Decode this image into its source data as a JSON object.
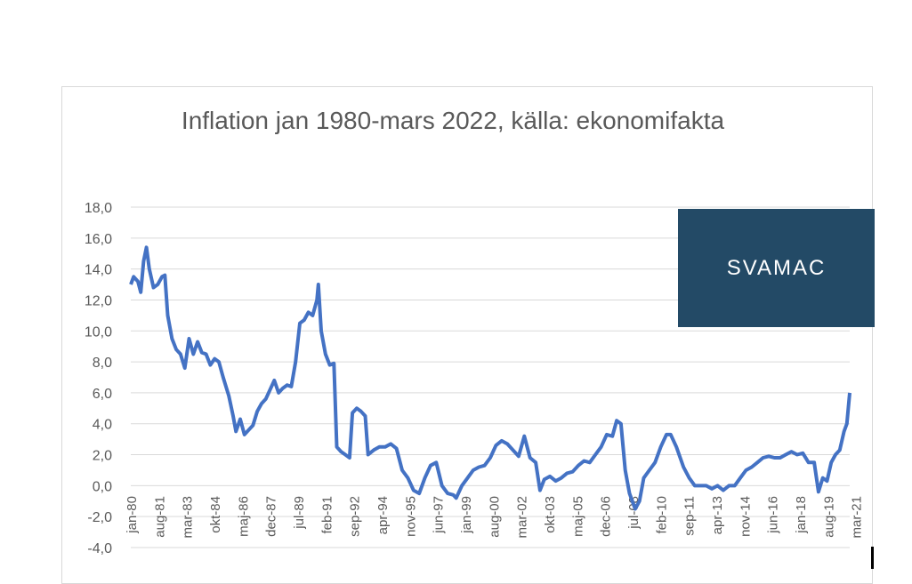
{
  "logo": {
    "text": "SVAMAC",
    "background": "#234a66",
    "accent": "#d38b5d"
  },
  "chart_data": {
    "type": "line",
    "title": "Inflation jan 1980-mars 2022, källa: ekonomifakta",
    "xlabel": "",
    "ylabel": "",
    "ylim": [
      -4,
      18
    ],
    "yticks": [
      "-4,0",
      "-2,0",
      "0,0",
      "2,0",
      "4,0",
      "6,0",
      "8,0",
      "10,0",
      "12,0",
      "14,0",
      "16,0",
      "18,0"
    ],
    "xticks": [
      "jan-80",
      "aug-81",
      "mar-83",
      "okt-84",
      "maj-86",
      "dec-87",
      "jul-89",
      "feb-91",
      "sep-92",
      "apr-94",
      "nov-95",
      "jun-97",
      "jan-99",
      "aug-00",
      "mar-02",
      "okt-03",
      "maj-05",
      "dec-06",
      "jul-08",
      "feb-10",
      "sep-11",
      "apr-13",
      "nov-14",
      "jun-16",
      "jan-18",
      "aug-19",
      "mar-21"
    ],
    "grid": true,
    "legend": "none",
    "line_color": "#4472c4",
    "x_range": [
      "1980-01",
      "2022-03"
    ],
    "series": [
      {
        "points": [
          [
            "1980-01",
            13.0
          ],
          [
            "1980-03",
            13.5
          ],
          [
            "1980-06",
            13.2
          ],
          [
            "1980-08",
            12.5
          ],
          [
            "1980-10",
            14.5
          ],
          [
            "1980-12",
            15.4
          ],
          [
            "1981-02",
            14.0
          ],
          [
            "1981-05",
            12.8
          ],
          [
            "1981-08",
            13.0
          ],
          [
            "1981-11",
            13.5
          ],
          [
            "1982-01",
            13.6
          ],
          [
            "1982-03",
            11.0
          ],
          [
            "1982-06",
            9.5
          ],
          [
            "1982-09",
            8.8
          ],
          [
            "1982-12",
            8.5
          ],
          [
            "1983-03",
            7.6
          ],
          [
            "1983-06",
            9.5
          ],
          [
            "1983-09",
            8.5
          ],
          [
            "1983-12",
            9.3
          ],
          [
            "1984-03",
            8.6
          ],
          [
            "1984-06",
            8.5
          ],
          [
            "1984-09",
            7.8
          ],
          [
            "1984-12",
            8.2
          ],
          [
            "1985-03",
            8.0
          ],
          [
            "1985-06",
            7.0
          ],
          [
            "1985-10",
            5.8
          ],
          [
            "1986-01",
            4.5
          ],
          [
            "1986-03",
            3.5
          ],
          [
            "1986-06",
            4.3
          ],
          [
            "1986-09",
            3.3
          ],
          [
            "1986-12",
            3.6
          ],
          [
            "1987-03",
            3.9
          ],
          [
            "1987-06",
            4.8
          ],
          [
            "1987-09",
            5.3
          ],
          [
            "1987-12",
            5.6
          ],
          [
            "1988-03",
            6.2
          ],
          [
            "1988-06",
            6.8
          ],
          [
            "1988-09",
            6.0
          ],
          [
            "1988-12",
            6.3
          ],
          [
            "1989-03",
            6.5
          ],
          [
            "1989-06",
            6.4
          ],
          [
            "1989-09",
            8.0
          ],
          [
            "1989-12",
            10.5
          ],
          [
            "1990-03",
            10.7
          ],
          [
            "1990-06",
            11.2
          ],
          [
            "1990-09",
            11.0
          ],
          [
            "1990-12",
            12.0
          ],
          [
            "1991-01",
            13.0
          ],
          [
            "1991-03",
            10.0
          ],
          [
            "1991-06",
            8.5
          ],
          [
            "1991-09",
            7.8
          ],
          [
            "1991-12",
            7.9
          ],
          [
            "1992-02",
            2.5
          ],
          [
            "1992-05",
            2.2
          ],
          [
            "1992-08",
            2.0
          ],
          [
            "1992-11",
            1.8
          ],
          [
            "1993-01",
            4.7
          ],
          [
            "1993-04",
            5.0
          ],
          [
            "1993-07",
            4.8
          ],
          [
            "1993-10",
            4.5
          ],
          [
            "1993-12",
            2.0
          ],
          [
            "1994-04",
            2.3
          ],
          [
            "1994-08",
            2.5
          ],
          [
            "1994-12",
            2.5
          ],
          [
            "1995-04",
            2.7
          ],
          [
            "1995-08",
            2.4
          ],
          [
            "1995-12",
            1.0
          ],
          [
            "1996-04",
            0.5
          ],
          [
            "1996-08",
            -0.3
          ],
          [
            "1996-12",
            -0.5
          ],
          [
            "1997-04",
            0.5
          ],
          [
            "1997-08",
            1.3
          ],
          [
            "1997-12",
            1.5
          ],
          [
            "1998-04",
            0.0
          ],
          [
            "1998-08",
            -0.5
          ],
          [
            "1998-12",
            -0.6
          ],
          [
            "1999-02",
            -0.8
          ],
          [
            "1999-06",
            0.0
          ],
          [
            "1999-10",
            0.5
          ],
          [
            "2000-02",
            1.0
          ],
          [
            "2000-06",
            1.2
          ],
          [
            "2000-10",
            1.3
          ],
          [
            "2001-02",
            1.8
          ],
          [
            "2001-06",
            2.6
          ],
          [
            "2001-10",
            2.9
          ],
          [
            "2002-02",
            2.7
          ],
          [
            "2002-06",
            2.3
          ],
          [
            "2002-10",
            1.9
          ],
          [
            "2003-02",
            3.2
          ],
          [
            "2003-06",
            1.8
          ],
          [
            "2003-10",
            1.5
          ],
          [
            "2004-01",
            -0.3
          ],
          [
            "2004-04",
            0.4
          ],
          [
            "2004-08",
            0.6
          ],
          [
            "2004-12",
            0.3
          ],
          [
            "2005-04",
            0.5
          ],
          [
            "2005-08",
            0.8
          ],
          [
            "2005-12",
            0.9
          ],
          [
            "2006-04",
            1.3
          ],
          [
            "2006-08",
            1.6
          ],
          [
            "2006-12",
            1.5
          ],
          [
            "2007-04",
            2.0
          ],
          [
            "2007-08",
            2.5
          ],
          [
            "2007-12",
            3.3
          ],
          [
            "2008-04",
            3.2
          ],
          [
            "2008-07",
            4.2
          ],
          [
            "2008-10",
            4.0
          ],
          [
            "2009-01",
            1.0
          ],
          [
            "2009-04",
            -0.5
          ],
          [
            "2009-08",
            -1.5
          ],
          [
            "2009-11",
            -1.0
          ],
          [
            "2010-02",
            0.5
          ],
          [
            "2010-06",
            1.0
          ],
          [
            "2010-10",
            1.5
          ],
          [
            "2011-02",
            2.5
          ],
          [
            "2011-06",
            3.3
          ],
          [
            "2011-09",
            3.3
          ],
          [
            "2012-01",
            2.5
          ],
          [
            "2012-06",
            1.2
          ],
          [
            "2012-10",
            0.5
          ],
          [
            "2013-02",
            0.0
          ],
          [
            "2013-06",
            0.0
          ],
          [
            "2013-10",
            0.0
          ],
          [
            "2014-02",
            -0.2
          ],
          [
            "2014-06",
            0.0
          ],
          [
            "2014-10",
            -0.3
          ],
          [
            "2015-02",
            0.0
          ],
          [
            "2015-06",
            0.0
          ],
          [
            "2015-10",
            0.5
          ],
          [
            "2016-02",
            1.0
          ],
          [
            "2016-06",
            1.2
          ],
          [
            "2016-10",
            1.5
          ],
          [
            "2017-02",
            1.8
          ],
          [
            "2017-06",
            1.9
          ],
          [
            "2017-10",
            1.8
          ],
          [
            "2018-02",
            1.8
          ],
          [
            "2018-06",
            2.0
          ],
          [
            "2018-10",
            2.2
          ],
          [
            "2019-02",
            2.0
          ],
          [
            "2019-06",
            2.1
          ],
          [
            "2019-10",
            1.5
          ],
          [
            "2020-02",
            1.5
          ],
          [
            "2020-05",
            -0.4
          ],
          [
            "2020-08",
            0.5
          ],
          [
            "2020-11",
            0.3
          ],
          [
            "2021-02",
            1.5
          ],
          [
            "2021-05",
            2.0
          ],
          [
            "2021-08",
            2.3
          ],
          [
            "2021-11",
            3.5
          ],
          [
            "2022-01",
            4.0
          ],
          [
            "2022-03",
            6.0
          ]
        ]
      }
    ]
  }
}
